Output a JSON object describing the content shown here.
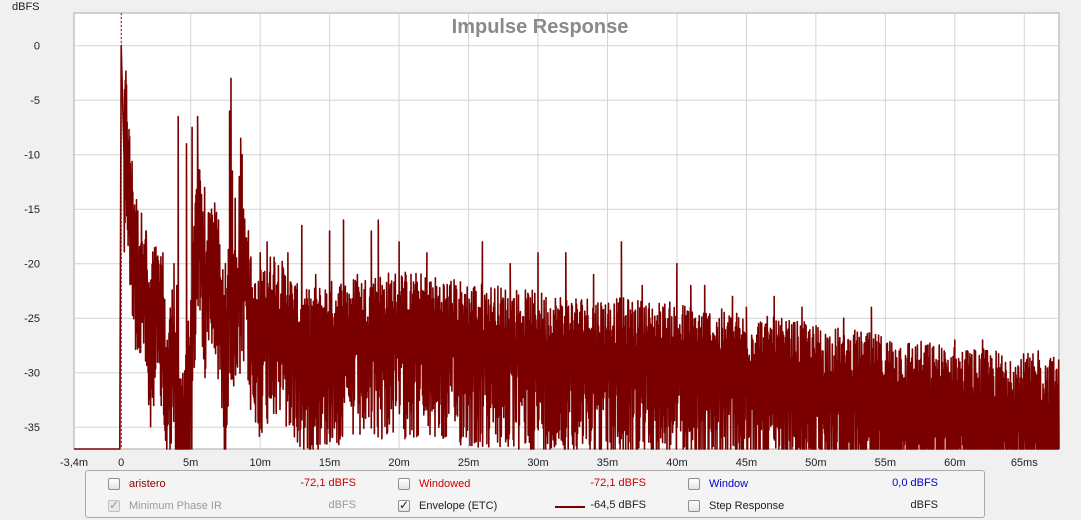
{
  "chart_data": {
    "type": "line",
    "title": "Impulse Response",
    "ylabel": "dBFS",
    "xlabel": "",
    "xlim": [
      -0.0034,
      0.0675
    ],
    "ylim": [
      -37,
      3
    ],
    "grid": true,
    "x_ticks": [
      {
        "v": -0.0034,
        "label": "-3,4m"
      },
      {
        "v": 0,
        "label": "0"
      },
      {
        "v": 0.005,
        "label": "5m"
      },
      {
        "v": 0.01,
        "label": "10m"
      },
      {
        "v": 0.015,
        "label": "15m"
      },
      {
        "v": 0.02,
        "label": "20m"
      },
      {
        "v": 0.025,
        "label": "25m"
      },
      {
        "v": 0.03,
        "label": "30m"
      },
      {
        "v": 0.035,
        "label": "35m"
      },
      {
        "v": 0.04,
        "label": "40m"
      },
      {
        "v": 0.045,
        "label": "45m"
      },
      {
        "v": 0.05,
        "label": "50m"
      },
      {
        "v": 0.055,
        "label": "55m"
      },
      {
        "v": 0.06,
        "label": "60m"
      },
      {
        "v": 0.065,
        "label": "65ms"
      }
    ],
    "y_ticks": [
      {
        "v": 0,
        "label": "0"
      },
      {
        "v": -5,
        "label": "-5"
      },
      {
        "v": -10,
        "label": "-10"
      },
      {
        "v": -15,
        "label": "-15"
      },
      {
        "v": -20,
        "label": "-20"
      },
      {
        "v": -25,
        "label": "-25"
      },
      {
        "v": -30,
        "label": "-30"
      },
      {
        "v": -35,
        "label": "-35"
      }
    ],
    "marker_x": 0,
    "series": [
      {
        "color": "#7a0000",
        "key_points": [
          [
            -0.0034,
            -37
          ],
          [
            -0.0001,
            -37
          ],
          [
            0,
            0
          ],
          [
            0.0002,
            -9
          ],
          [
            0.0003,
            -3.5
          ],
          [
            0.0006,
            -10
          ],
          [
            0.0009,
            -14
          ],
          [
            0.0013,
            -18
          ],
          [
            0.0017,
            -17
          ],
          [
            0.002,
            -24
          ],
          [
            0.0023,
            -20
          ],
          [
            0.0029,
            -22
          ],
          [
            0.0033,
            -28
          ],
          [
            0.0037,
            -24
          ],
          [
            0.0042,
            -33
          ],
          [
            0.005,
            -26
          ],
          [
            0.0055,
            -11.5
          ],
          [
            0.006,
            -19
          ],
          [
            0.0065,
            -16
          ],
          [
            0.007,
            -18
          ],
          [
            0.0075,
            -26
          ],
          [
            0.0078,
            -17
          ],
          [
            0.0081,
            -21
          ],
          [
            0.0086,
            -18
          ],
          [
            0.009,
            -17
          ],
          [
            0.0095,
            -24
          ],
          [
            0.011,
            -21
          ],
          [
            0.013,
            -25
          ],
          [
            0.015,
            -24
          ],
          [
            0.02,
            -23
          ],
          [
            0.03,
            -25
          ],
          [
            0.04,
            -26
          ],
          [
            0.05,
            -28
          ],
          [
            0.06,
            -30
          ],
          [
            0.0675,
            -31
          ]
        ],
        "peaks": [
          [
            0.0002,
            -8
          ],
          [
            0.0004,
            -11
          ],
          [
            0.0007,
            -14
          ],
          [
            0.0015,
            -18
          ],
          [
            0.0018,
            -17
          ],
          [
            0.003,
            -19
          ],
          [
            0.0038,
            -20
          ],
          [
            0.004,
            -22
          ],
          [
            0.0041,
            -6.5
          ],
          [
            0.0047,
            -9
          ],
          [
            0.0051,
            -7.5
          ],
          [
            0.0055,
            -6.5
          ],
          [
            0.006,
            -13
          ],
          [
            0.0065,
            -15
          ],
          [
            0.007,
            -16
          ],
          [
            0.0075,
            -20
          ],
          [
            0.0078,
            -18
          ],
          [
            0.008,
            -11.5
          ],
          [
            0.0082,
            -14
          ],
          [
            0.0085,
            -12
          ],
          [
            0.0088,
            -15
          ],
          [
            0.0091,
            -18
          ],
          [
            0.0078,
            -6
          ],
          [
            0.0079,
            -3
          ],
          [
            0.0086,
            -8.5
          ],
          [
            0.0087,
            -10
          ],
          [
            0.01,
            -19
          ],
          [
            0.0105,
            -18
          ],
          [
            0.011,
            -20
          ],
          [
            0.012,
            -19
          ],
          [
            0.013,
            -16.5
          ],
          [
            0.014,
            -21
          ],
          [
            0.015,
            -17
          ],
          [
            0.016,
            -16
          ],
          [
            0.017,
            -21
          ],
          [
            0.018,
            -17
          ],
          [
            0.0185,
            -16
          ],
          [
            0.02,
            -18
          ],
          [
            0.022,
            -19
          ],
          [
            0.024,
            -22
          ],
          [
            0.026,
            -18
          ],
          [
            0.028,
            -20
          ],
          [
            0.03,
            -19
          ],
          [
            0.032,
            -19
          ],
          [
            0.034,
            -21
          ],
          [
            0.036,
            -18
          ],
          [
            0.0375,
            -22
          ],
          [
            0.04,
            -20
          ],
          [
            0.041,
            -22
          ],
          [
            0.042,
            -22
          ],
          [
            0.044,
            -23
          ],
          [
            0.045,
            -24
          ],
          [
            0.047,
            -23
          ],
          [
            0.048,
            -26
          ],
          [
            0.049,
            -24
          ],
          [
            0.052,
            -25
          ],
          [
            0.054,
            -24
          ],
          [
            0.056,
            -28
          ],
          [
            0.058,
            -27.5
          ],
          [
            0.06,
            -27
          ],
          [
            0.062,
            -27
          ],
          [
            0.064,
            -29
          ],
          [
            0.065,
            -30
          ],
          [
            0.066,
            -28
          ],
          [
            0.067,
            -29
          ]
        ]
      }
    ]
  },
  "legend": {
    "rows": [
      [
        {
          "label": "aristero",
          "value": "-72,1 dBFS",
          "label_color": "#8b0000",
          "value_color": "#cc0000",
          "checked": false,
          "disabled": false
        },
        {
          "label": "Windowed",
          "value": "-72,1 dBFS",
          "label_color": "#cc0000",
          "value_color": "#cc0000",
          "checked": false,
          "disabled": false
        },
        {
          "label": "Window",
          "value": "0,0 dBFS",
          "label_color": "#0000cc",
          "value_color": "#0000cc",
          "checked": false,
          "disabled": false
        }
      ],
      [
        {
          "label": "Minimum Phase IR",
          "value": "dBFS",
          "label_color": "#9a9a9a",
          "value_color": "#9a9a9a",
          "checked": true,
          "disabled": true
        },
        {
          "label": "Envelope (ETC)",
          "value": "-64,5 dBFS",
          "label_color": "#202020",
          "value_color": "#202020",
          "checked": true,
          "disabled": false,
          "swatch_color": "#7a0000"
        },
        {
          "label": "Step Response",
          "value": "dBFS",
          "label_color": "#202020",
          "value_color": "#202020",
          "checked": false,
          "disabled": false
        }
      ]
    ]
  }
}
